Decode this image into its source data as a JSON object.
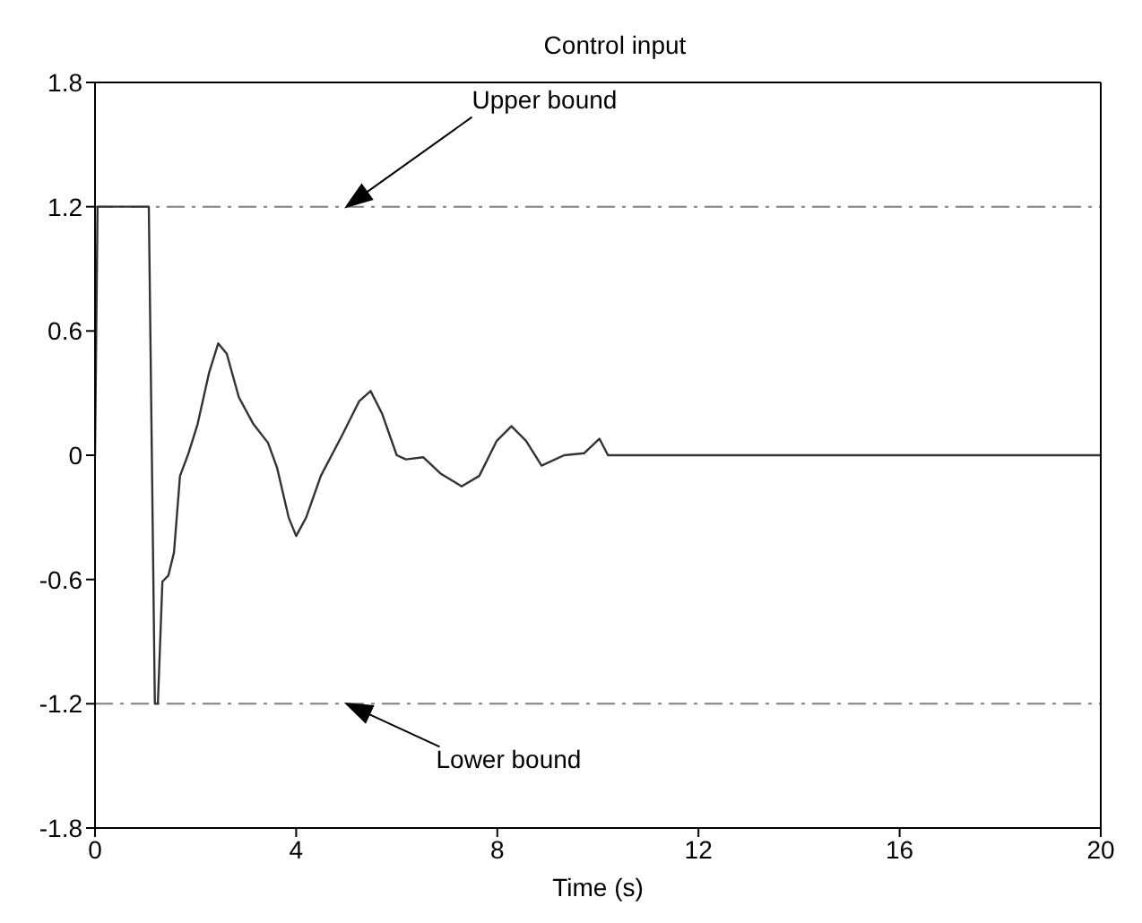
{
  "chart_data": {
    "type": "line",
    "title": "Control input",
    "xlabel": "Time (s)",
    "x": [
      0,
      0.05,
      1.07,
      1.19,
      1.25,
      1.34,
      1.46,
      1.57,
      1.69,
      1.86,
      2.04,
      2.27,
      2.45,
      2.62,
      2.86,
      3.15,
      3.44,
      3.62,
      3.85,
      4.0,
      4.2,
      4.49,
      4.9,
      5.25,
      5.48,
      5.71,
      6.0,
      6.18,
      6.53,
      6.88,
      7.29,
      7.64,
      7.99,
      8.28,
      8.57,
      8.88,
      9.33,
      9.73,
      10.03,
      10.2,
      12,
      16,
      20
    ],
    "series": [
      {
        "color": "#333333",
        "values": [
          0,
          1.2,
          1.2,
          -1.2,
          -1.2,
          -0.61,
          -0.58,
          -0.47,
          -0.1,
          0.01,
          0.15,
          0.4,
          0.54,
          0.49,
          0.28,
          0.15,
          0.06,
          -0.06,
          -0.3,
          -0.39,
          -0.3,
          -0.1,
          0.09,
          0.26,
          0.31,
          0.2,
          0,
          -0.02,
          -0.01,
          -0.09,
          -0.15,
          -0.1,
          0.07,
          0.14,
          0.07,
          -0.05,
          0,
          0.01,
          0.08,
          0,
          0,
          0,
          0
        ]
      }
    ],
    "xlim": [
      0,
      20
    ],
    "xticks": [
      0,
      4,
      8,
      12,
      16,
      20
    ],
    "ylim": [
      -1.8,
      1.8
    ],
    "yticks": [
      -1.8,
      -1.2,
      -0.6,
      0,
      0.6,
      1.2,
      1.8
    ],
    "ref_lines": [
      {
        "axis": "y",
        "value": 1.2,
        "label": "Upper bound",
        "color": "#808080",
        "line_style": "dashed"
      },
      {
        "axis": "y",
        "value": -1.2,
        "label": "Lower bound",
        "color": "#808080",
        "line_style": "dashed"
      }
    ],
    "marker": "none",
    "line_style": "solid"
  }
}
